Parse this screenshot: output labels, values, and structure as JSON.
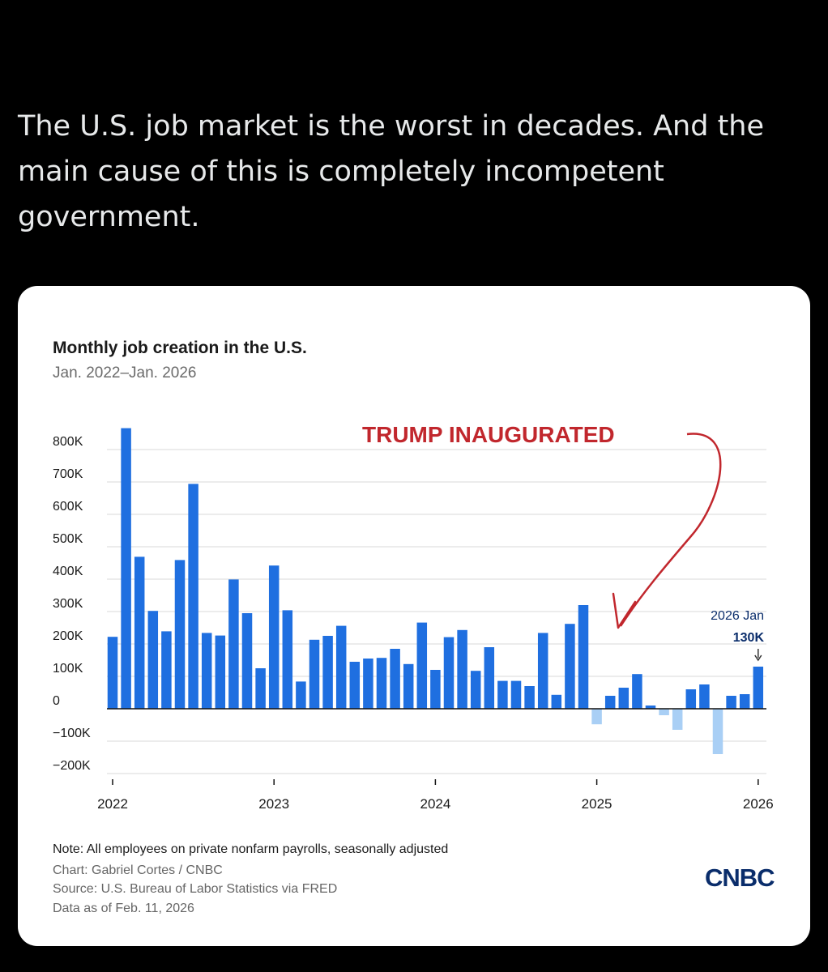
{
  "post": {
    "text": "The U.S. job market is the worst in decades. And the main cause of this is completely incompetent government."
  },
  "card": {
    "title": "Monthly job creation in the U.S.",
    "subtitle": "Jan. 2022–Jan. 2026",
    "note": "Note: All employees on private nonfarm payrolls, seasonally adjusted",
    "credit": "Chart: Gabriel Cortes / CNBC",
    "source": "Source: U.S. Bureau of Labor Statistics via FRED",
    "as_of": "Data as of Feb. 11, 2026",
    "logo": "CNBC"
  },
  "colors": {
    "positive_bar": "#1f6fe0",
    "negative_bar": "#a9cff5",
    "annotation": "#c1272d"
  },
  "chart_data": {
    "type": "bar",
    "title": "Monthly job creation in the U.S.",
    "subtitle": "Jan. 2022–Jan. 2026",
    "units": "thousands of jobs",
    "ylim": [
      -250,
      850
    ],
    "yticks": [
      -200,
      -100,
      0,
      100,
      200,
      300,
      400,
      500,
      600,
      700,
      800
    ],
    "ytick_labels": [
      "−200K",
      "−100K",
      "0",
      "100K",
      "200K",
      "300K",
      "400K",
      "500K",
      "600K",
      "700K",
      "800K"
    ],
    "xtick_labels": [
      "2022",
      "2023",
      "2024",
      "2025",
      "2026"
    ],
    "xtick_month_index": [
      0,
      12,
      24,
      36,
      48
    ],
    "categories": [
      "2022-01",
      "2022-02",
      "2022-03",
      "2022-04",
      "2022-05",
      "2022-06",
      "2022-07",
      "2022-08",
      "2022-09",
      "2022-10",
      "2022-11",
      "2022-12",
      "2023-01",
      "2023-02",
      "2023-03",
      "2023-04",
      "2023-05",
      "2023-06",
      "2023-07",
      "2023-08",
      "2023-09",
      "2023-10",
      "2023-11",
      "2023-12",
      "2024-01",
      "2024-02",
      "2024-03",
      "2024-04",
      "2024-05",
      "2024-06",
      "2024-07",
      "2024-08",
      "2024-09",
      "2024-10",
      "2024-11",
      "2024-12",
      "2025-01",
      "2025-02",
      "2025-03",
      "2025-04",
      "2025-05",
      "2025-06",
      "2025-07",
      "2025-08",
      "2025-09",
      "2025-10",
      "2025-11",
      "2025-12",
      "2026-01"
    ],
    "values": [
      222,
      866,
      469,
      302,
      239,
      459,
      694,
      234,
      226,
      399,
      295,
      125,
      442,
      304,
      84,
      213,
      225,
      256,
      145,
      155,
      157,
      185,
      138,
      266,
      120,
      221,
      243,
      117,
      190,
      86,
      86,
      70,
      234,
      43,
      262,
      320,
      -48,
      40,
      65,
      107,
      10,
      -20,
      -65,
      60,
      75,
      -140,
      40,
      45,
      130
    ],
    "annotations": [
      {
        "text": "TRUMP INAUGURATED",
        "points_to": "2025-01"
      },
      {
        "text_line1": "2026 Jan",
        "text_line2": "130K",
        "points_to": "2026-01"
      }
    ]
  }
}
